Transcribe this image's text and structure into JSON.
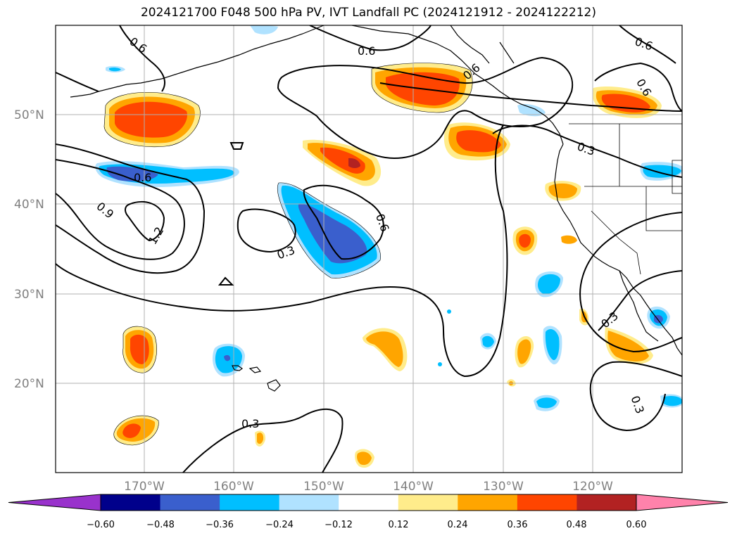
{
  "title": "2024121700 F048 500 hPa PV, IVT Landfall PC (2024121912 - 2024122212)",
  "axes": {
    "lat_labels": [
      "50°N",
      "40°N",
      "30°N",
      "20°N"
    ],
    "lon_labels": [
      "170°W",
      "160°W",
      "150°W",
      "140°W",
      "130°W",
      "120°W"
    ]
  },
  "contour_labels": [
    "0.6",
    "0.6",
    "0.6",
    "0.6",
    "0.6",
    "0.6",
    "0.6",
    "0.9",
    "1.2",
    "0.3",
    "0.3",
    "0.3",
    "0.3",
    "0.3"
  ],
  "colorbar": {
    "tick_labels": [
      "−0.60",
      "−0.48",
      "−0.36",
      "−0.24",
      "−0.12",
      "0.12",
      "0.24",
      "0.36",
      "0.48",
      "0.60"
    ],
    "colors": [
      "#9932cc",
      "#00008b",
      "#3a5fcd",
      "#00bfff",
      "#b0e2ff",
      "#ffffff",
      "#ffec8b",
      "#ffa500",
      "#ff4500",
      "#b22222",
      "#ff82ab"
    ]
  },
  "colors": {
    "grid": "#b0b0b0",
    "axis_label": "#808080"
  }
}
